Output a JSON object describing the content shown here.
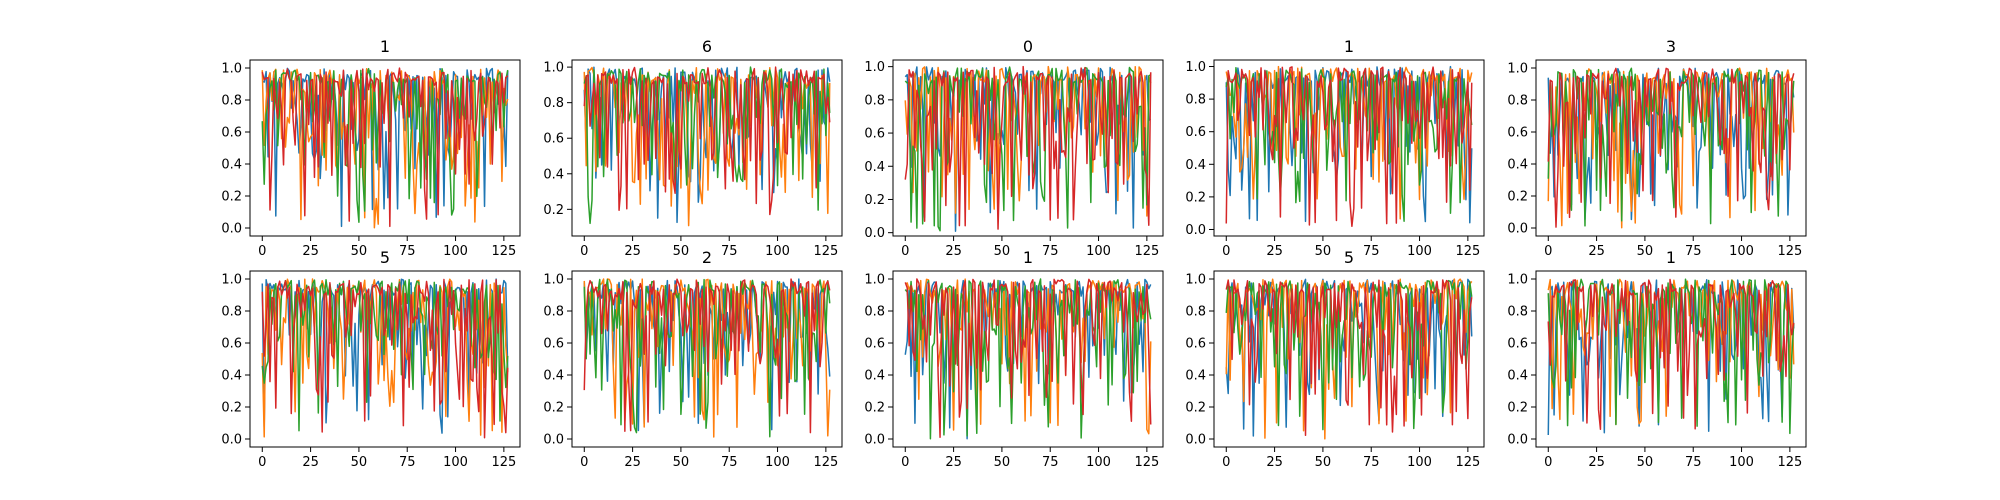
{
  "figure": {
    "description_title": "",
    "rows": 2,
    "cols": 5
  },
  "series_colors": [
    "#1f77b4",
    "#ff7f0e",
    "#2ca02c",
    "#d62728"
  ],
  "chart_data": [
    {
      "type": "line",
      "title": "1",
      "xlim": [
        -6.35,
        133.35
      ],
      "ylim": [
        -0.05,
        1.05
      ],
      "xticks": [
        0,
        25,
        50,
        75,
        100,
        125
      ],
      "yticks": [
        0.0,
        0.2,
        0.4,
        0.6,
        0.8,
        1.0
      ],
      "xticklabels": [
        "0",
        "25",
        "50",
        "75",
        "100",
        "125"
      ],
      "yticklabels": [
        "0.0",
        "0.2",
        "0.4",
        "0.6",
        "0.8",
        "1.0"
      ],
      "n_points": 128,
      "seed": 11
    },
    {
      "type": "line",
      "title": "6",
      "xlim": [
        -6.35,
        133.35
      ],
      "ylim": [
        0.05,
        1.04
      ],
      "xticks": [
        0,
        25,
        50,
        75,
        100,
        125
      ],
      "yticks": [
        0.2,
        0.4,
        0.6,
        0.8,
        1.0
      ],
      "xticklabels": [
        "0",
        "25",
        "50",
        "75",
        "100",
        "125"
      ],
      "yticklabels": [
        "0.2",
        "0.4",
        "0.6",
        "0.8",
        "1.0"
      ],
      "n_points": 128,
      "seed": 26
    },
    {
      "type": "line",
      "title": "0",
      "xlim": [
        -6.35,
        133.35
      ],
      "ylim": [
        -0.02,
        1.04
      ],
      "xticks": [
        0,
        25,
        50,
        75,
        100,
        125
      ],
      "yticks": [
        0.0,
        0.2,
        0.4,
        0.6,
        0.8,
        1.0
      ],
      "xticklabels": [
        "0",
        "25",
        "50",
        "75",
        "100",
        "125"
      ],
      "yticklabels": [
        "0.0",
        "0.2",
        "0.4",
        "0.6",
        "0.8",
        "1.0"
      ],
      "n_points": 128,
      "seed": 37
    },
    {
      "type": "line",
      "title": "1",
      "xlim": [
        -6.35,
        133.35
      ],
      "ylim": [
        -0.04,
        1.04
      ],
      "xticks": [
        0,
        25,
        50,
        75,
        100,
        125
      ],
      "yticks": [
        0.0,
        0.2,
        0.4,
        0.6,
        0.8,
        1.0
      ],
      "xticklabels": [
        "0",
        "25",
        "50",
        "75",
        "100",
        "125"
      ],
      "yticklabels": [
        "0.0",
        "0.2",
        "0.4",
        "0.6",
        "0.8",
        "1.0"
      ],
      "n_points": 128,
      "seed": 44
    },
    {
      "type": "line",
      "title": "3",
      "xlim": [
        -6.35,
        133.35
      ],
      "ylim": [
        -0.05,
        1.05
      ],
      "xticks": [
        0,
        25,
        50,
        75,
        100,
        125
      ],
      "yticks": [
        0.0,
        0.2,
        0.4,
        0.6,
        0.8,
        1.0
      ],
      "xticklabels": [
        "0",
        "25",
        "50",
        "75",
        "100",
        "125"
      ],
      "yticklabels": [
        "0.0",
        "0.2",
        "0.4",
        "0.6",
        "0.8",
        "1.0"
      ],
      "n_points": 128,
      "seed": 53
    },
    {
      "type": "line",
      "title": "5",
      "xlim": [
        -6.35,
        133.35
      ],
      "ylim": [
        -0.05,
        1.05
      ],
      "xticks": [
        0,
        25,
        50,
        75,
        100,
        125
      ],
      "yticks": [
        0.0,
        0.2,
        0.4,
        0.6,
        0.8,
        1.0
      ],
      "xticklabels": [
        "0",
        "25",
        "50",
        "75",
        "100",
        "125"
      ],
      "yticklabels": [
        "0.0",
        "0.2",
        "0.4",
        "0.6",
        "0.8",
        "1.0"
      ],
      "n_points": 128,
      "seed": 61
    },
    {
      "type": "line",
      "title": "2",
      "xlim": [
        -6.35,
        133.35
      ],
      "ylim": [
        -0.05,
        1.05
      ],
      "xticks": [
        0,
        25,
        50,
        75,
        100,
        125
      ],
      "yticks": [
        0.0,
        0.2,
        0.4,
        0.6,
        0.8,
        1.0
      ],
      "xticklabels": [
        "0",
        "25",
        "50",
        "75",
        "100",
        "125"
      ],
      "yticklabels": [
        "0.0",
        "0.2",
        "0.4",
        "0.6",
        "0.8",
        "1.0"
      ],
      "n_points": 128,
      "seed": 72
    },
    {
      "type": "line",
      "title": "1",
      "xlim": [
        -6.35,
        133.35
      ],
      "ylim": [
        -0.05,
        1.05
      ],
      "xticks": [
        0,
        25,
        50,
        75,
        100,
        125
      ],
      "yticks": [
        0.0,
        0.2,
        0.4,
        0.6,
        0.8,
        1.0
      ],
      "xticklabels": [
        "0",
        "25",
        "50",
        "75",
        "100",
        "125"
      ],
      "yticklabels": [
        "0.0",
        "0.2",
        "0.4",
        "0.6",
        "0.8",
        "1.0"
      ],
      "n_points": 128,
      "seed": 88
    },
    {
      "type": "line",
      "title": "5",
      "xlim": [
        -6.35,
        133.35
      ],
      "ylim": [
        -0.05,
        1.05
      ],
      "xticks": [
        0,
        25,
        50,
        75,
        100,
        125
      ],
      "yticks": [
        0.0,
        0.2,
        0.4,
        0.6,
        0.8,
        1.0
      ],
      "xticklabels": [
        "0",
        "25",
        "50",
        "75",
        "100",
        "125"
      ],
      "yticklabels": [
        "0.0",
        "0.2",
        "0.4",
        "0.6",
        "0.8",
        "1.0"
      ],
      "n_points": 128,
      "seed": 95
    },
    {
      "type": "line",
      "title": "1",
      "xlim": [
        -6.35,
        133.35
      ],
      "ylim": [
        -0.05,
        1.05
      ],
      "xticks": [
        0,
        25,
        50,
        75,
        100,
        125
      ],
      "yticks": [
        0.0,
        0.2,
        0.4,
        0.6,
        0.8,
        1.0
      ],
      "xticklabels": [
        "0",
        "25",
        "50",
        "75",
        "100",
        "125"
      ],
      "yticklabels": [
        "0.0",
        "0.2",
        "0.4",
        "0.6",
        "0.8",
        "1.0"
      ],
      "n_points": 128,
      "seed": 103
    }
  ]
}
